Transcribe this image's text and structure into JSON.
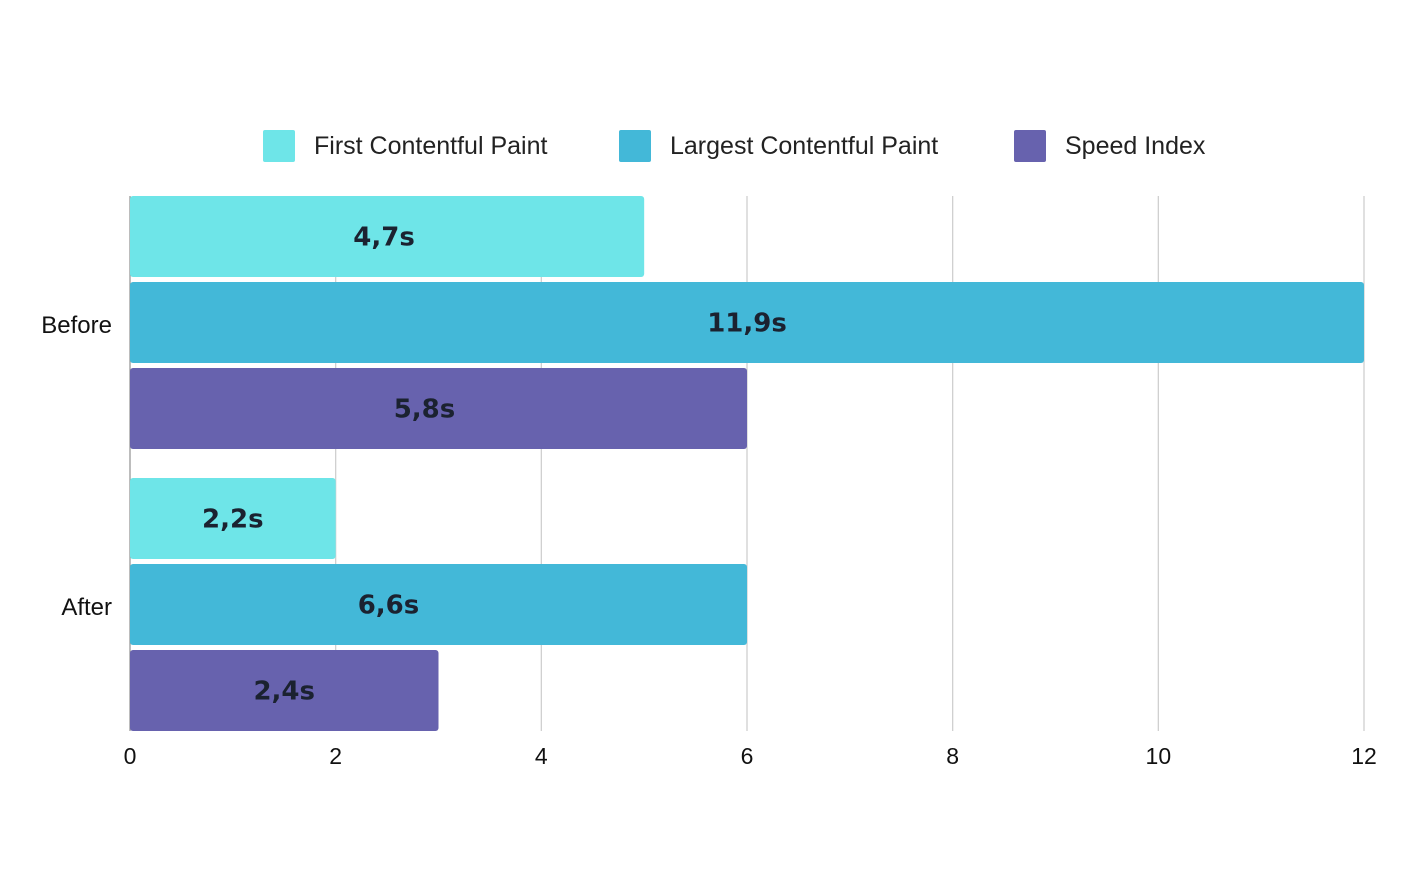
{
  "chart_data": {
    "type": "bar",
    "orientation": "horizontal",
    "title": "",
    "xlabel": "",
    "ylabel": "",
    "xlim": [
      0,
      12
    ],
    "xticks": [
      "0",
      "2",
      "4",
      "6",
      "8",
      "10",
      "12"
    ],
    "grid": true,
    "legend_position": "top",
    "categories": [
      "Before",
      "After"
    ],
    "series": [
      {
        "name": "First Contentful Paint",
        "color": "#6ee5e8",
        "values": [
          4.7,
          2.2
        ],
        "labels": [
          "4,7s",
          "2,2s"
        ],
        "drawn_length": [
          5,
          2
        ]
      },
      {
        "name": "Largest Contentful Paint",
        "color": "#43b8d8",
        "values": [
          11.9,
          6.6
        ],
        "labels": [
          "11,9s",
          "6,6s"
        ],
        "drawn_length": [
          12,
          6
        ]
      },
      {
        "name": "Speed Index",
        "color": "#6762ae",
        "values": [
          5.8,
          2.4
        ],
        "labels": [
          "5,8s",
          "2,4s"
        ],
        "drawn_length": [
          6,
          3
        ]
      }
    ]
  }
}
